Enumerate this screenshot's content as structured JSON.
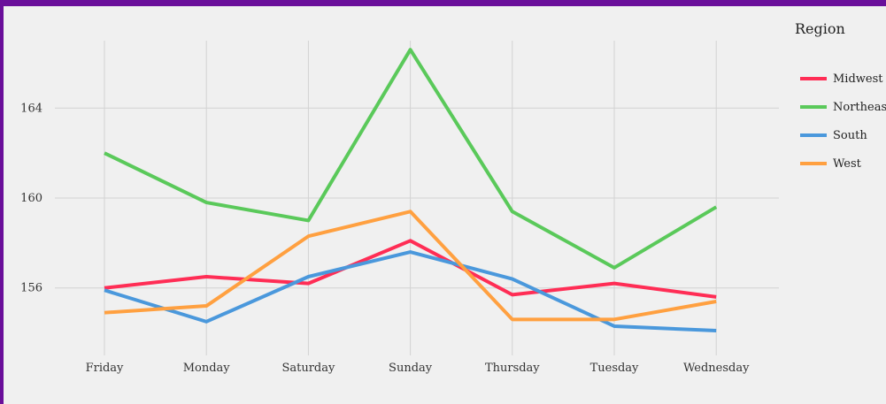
{
  "chart_data": {
    "type": "line",
    "categories": [
      "Friday",
      "Monday",
      "Saturday",
      "Sunday",
      "Thursday",
      "Tuesday",
      "Wednesday"
    ],
    "ylim": [
      153.0,
      167.0
    ],
    "yticks": [
      156,
      160,
      164
    ],
    "grid": true,
    "legend": {
      "title": "Region",
      "placement": "right"
    },
    "series": [
      {
        "name": "Midwest",
        "color": "#ff2d55",
        "values": [
          156.0,
          156.5,
          156.2,
          158.1,
          155.7,
          156.2,
          155.6
        ]
      },
      {
        "name": "Northeast",
        "color": "#5ac95a",
        "values": [
          162.0,
          159.8,
          159.0,
          166.6,
          159.4,
          156.9,
          159.6
        ]
      },
      {
        "name": "South",
        "color": "#4a98dc",
        "values": [
          155.9,
          154.5,
          156.5,
          157.6,
          156.4,
          154.3,
          154.1
        ]
      },
      {
        "name": "West",
        "color": "#ffa040",
        "values": [
          154.9,
          155.2,
          158.3,
          159.4,
          154.6,
          154.6,
          155.4
        ]
      }
    ]
  }
}
